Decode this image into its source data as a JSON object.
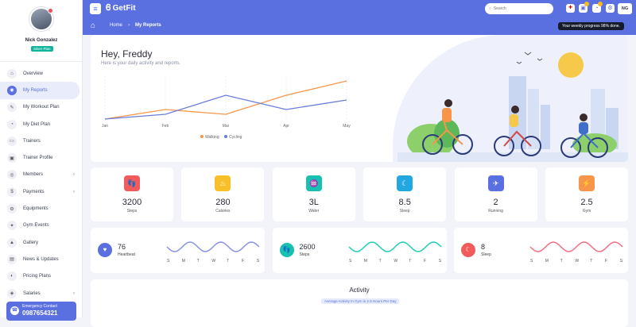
{
  "user": {
    "name": "Nick Gonzalez",
    "plan": "Silver Plan"
  },
  "sidebar": {
    "items": [
      {
        "label": "Overview",
        "icon": "home-icon",
        "glyph": "⌂"
      },
      {
        "label": "My Reports",
        "icon": "reports-icon",
        "glyph": "◉",
        "active": true
      },
      {
        "label": "My Workout Plan",
        "icon": "workout-icon",
        "glyph": "✎"
      },
      {
        "label": "My Diet Plan",
        "icon": "diet-icon",
        "glyph": "◔"
      },
      {
        "label": "Trainers",
        "icon": "trainers-icon",
        "glyph": "▭"
      },
      {
        "label": "Trainer Profile",
        "icon": "profile-icon",
        "glyph": "▣"
      },
      {
        "label": "Members",
        "icon": "members-icon",
        "glyph": "◎",
        "arrow": true
      },
      {
        "label": "Payments",
        "icon": "payments-icon",
        "glyph": "$",
        "arrow": true
      },
      {
        "label": "Equipments",
        "icon": "equipments-icon",
        "glyph": "⚙"
      },
      {
        "label": "Gym Events",
        "icon": "events-icon",
        "glyph": "✦"
      },
      {
        "label": "Gallery",
        "icon": "gallery-icon",
        "glyph": "▲"
      },
      {
        "label": "News & Updates",
        "icon": "news-icon",
        "glyph": "▤"
      },
      {
        "label": "Pricing Plans",
        "icon": "pricing-icon",
        "glyph": "◐"
      },
      {
        "label": "Salaries",
        "icon": "salaries-icon",
        "glyph": "◈",
        "arrow": true
      }
    ]
  },
  "emergency": {
    "label": "Emergency Contact",
    "number": "0987654321"
  },
  "topbar": {
    "brand": "GetFit",
    "search_placeholder": "Search",
    "user_initials": "NG"
  },
  "breadcrumb": {
    "home": "Home",
    "current": "My Reports"
  },
  "progress_note": "Your weekly progress 98% done.",
  "hero": {
    "title": "Hey, Freddy",
    "subtitle": "Here is your daily activity and reports."
  },
  "chart_data": {
    "type": "line",
    "categories": [
      "Jan",
      "Feb",
      "Mar",
      "Apr",
      "May"
    ],
    "series": [
      {
        "name": "Walking",
        "values": [
          0,
          2,
          1,
          5,
          8
        ],
        "color": "#f7964a"
      },
      {
        "name": "Cycling",
        "values": [
          0,
          1,
          5,
          2,
          4
        ],
        "color": "#6b7ddb"
      }
    ],
    "ylim": [
      0,
      9
    ],
    "legend": "bottom",
    "grid": true
  },
  "stats": [
    {
      "value": "3200",
      "label": "Steps",
      "color": "#f25b5b",
      "icon": "steps-icon",
      "glyph": "👣"
    },
    {
      "value": "280",
      "label": "Calories",
      "color": "#f7c02b",
      "icon": "calories-icon",
      "glyph": "♨"
    },
    {
      "value": "3L",
      "label": "Water",
      "color": "#17c0b0",
      "icon": "water-icon",
      "glyph": "♒"
    },
    {
      "value": "8.5",
      "label": "Sleep",
      "color": "#23a7e0",
      "icon": "sleep-icon",
      "glyph": "☾"
    },
    {
      "value": "2",
      "label": "Running",
      "color": "#5a6fe0",
      "icon": "running-icon",
      "glyph": "✈"
    },
    {
      "value": "2.5",
      "label": "Gym",
      "color": "#f7964a",
      "icon": "gym-icon",
      "glyph": "⚡"
    }
  ],
  "wave_cards": [
    {
      "value": "76",
      "label": "Heartbeat",
      "color": "#5a6fe0",
      "wave": "#8a93e6",
      "icon": "heart-icon",
      "glyph": "♥"
    },
    {
      "value": "2600",
      "label": "Steps",
      "color": "#17c0b0",
      "wave": "#26cdb6",
      "icon": "steps-icon",
      "glyph": "👣"
    },
    {
      "value": "8",
      "label": "Sleep",
      "color": "#f25b5b",
      "wave": "#f57087",
      "icon": "sleep-icon",
      "glyph": "☾"
    }
  ],
  "days": [
    "S",
    "M",
    "T",
    "W",
    "T",
    "F",
    "S"
  ],
  "activity": {
    "title": "Activity",
    "subtitle": "Average Activity In Gym is 2.5 Hours Per Day"
  }
}
